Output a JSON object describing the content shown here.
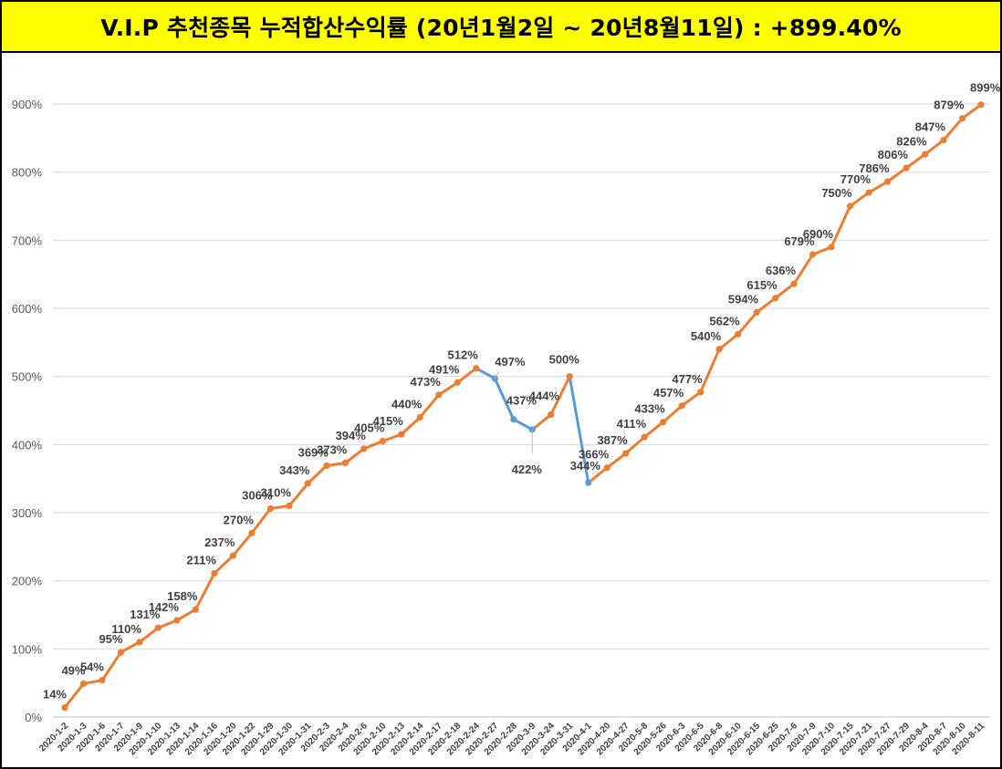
{
  "header": {
    "title": "V.I.P 추천종목 누적합산수익률 (20년1월2일 ~ 20년8월11일) : +899.40%",
    "background_color": "#ffff00"
  },
  "chart_data": {
    "type": "line",
    "title": "V.I.P 추천종목 누적합산수익률 (20년1월2일 ~ 20년8월11일) : +899.40%",
    "xlabel": "",
    "ylabel": "",
    "ylim": [
      0,
      900
    ],
    "yticks": [
      "0%",
      "100%",
      "200%",
      "300%",
      "400%",
      "500%",
      "600%",
      "700%",
      "800%",
      "900%"
    ],
    "grid": true,
    "legend": "none",
    "colors": {
      "line": "#ed7d31",
      "decline_segment": "#5b9bd5",
      "grid": "#d9d9d9"
    },
    "categories": [
      "2020-1-2",
      "2020-1-3",
      "2020-1-6",
      "2020-1-7",
      "2020-1-9",
      "2020-1-10",
      "2020-1-13",
      "2020-1-14",
      "2020-1-16",
      "2020-1-20",
      "2020-1-22",
      "2020-1-29",
      "2020-1-30",
      "2020-1-31",
      "2020-2-3",
      "2020-2-4",
      "2020-2-6",
      "2020-2-10",
      "2020-2-13",
      "2020-2-14",
      "2020-2-17",
      "2020-2-18",
      "2020-2-24",
      "2020-2-27",
      "2020-2-28",
      "2020-3-9",
      "2020-3-24",
      "2020-3-31",
      "2020-4-1",
      "2020-4-20",
      "2020-4-27",
      "2020-5-8",
      "2020-5-26",
      "2020-6-3",
      "2020-6-5",
      "2020-6-8",
      "2020-6-10",
      "2020-6-15",
      "2020-6-25",
      "2020-7-6",
      "2020-7-9",
      "2020-7-10",
      "2020-7-15",
      "2020-7-21",
      "2020-7-27",
      "2020-7-29",
      "2020-8-4",
      "2020-8-7",
      "2020-8-10",
      "2020-8-11"
    ],
    "values": [
      14,
      49,
      54,
      95,
      110,
      131,
      142,
      158,
      211,
      237,
      270,
      306,
      310,
      343,
      369,
      373,
      394,
      405,
      415,
      440,
      473,
      491,
      512,
      497,
      437,
      422,
      444,
      500,
      344,
      366,
      387,
      411,
      433,
      457,
      477,
      540,
      562,
      594,
      615,
      636,
      679,
      690,
      750,
      770,
      786,
      806,
      826,
      847,
      879,
      899
    ],
    "data_labels": [
      "14%",
      "49%",
      "54%",
      "95%",
      "110%",
      "131%",
      "142%",
      "158%",
      "211%",
      "237%",
      "270%",
      "306%",
      "310%",
      "343%",
      "369%",
      "373%",
      "394%",
      "405%",
      "415%",
      "440%",
      "473%",
      "491%",
      "512%",
      "497%",
      "437%",
      "422%",
      "444%",
      "500%",
      "344%",
      "366%",
      "387%",
      "411%",
      "433%",
      "457%",
      "477%",
      "540%",
      "562%",
      "594%",
      "615%",
      "636%",
      "679%",
      "690%",
      "750%",
      "770%",
      "786%",
      "806%",
      "826%",
      "847%",
      "879%",
      "899%"
    ],
    "decline_segments": [
      [
        22,
        25
      ],
      [
        27,
        28
      ]
    ]
  }
}
